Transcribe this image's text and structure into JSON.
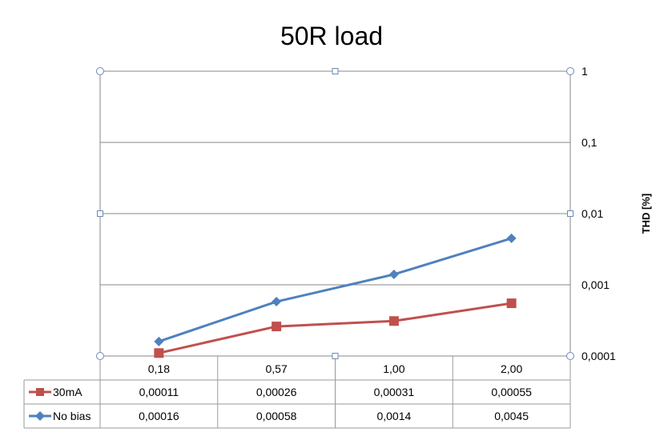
{
  "chart_data": {
    "type": "line",
    "title": "50R load",
    "ylabel": "THD [%]",
    "y_scale": "log",
    "ylim": [
      0.0001,
      1
    ],
    "y_ticks": [
      "1",
      "0,1",
      "0,01",
      "0,001",
      "0,0001"
    ],
    "y_tick_values": [
      1,
      0.1,
      0.01,
      0.001,
      0.0001
    ],
    "categories": [
      "0,18",
      "0,57",
      "1,00",
      "2,00"
    ],
    "grid": true,
    "legend": "data-table",
    "series": [
      {
        "name": "30mA",
        "color": "#c0504d",
        "marker": "square",
        "values": [
          0.00011,
          0.00026,
          0.00031,
          0.00055
        ],
        "labels": [
          "0,00011",
          "0,00026",
          "0,00031",
          "0,00055"
        ]
      },
      {
        "name": "No bias",
        "color": "#4f81bd",
        "marker": "diamond",
        "values": [
          0.00016,
          0.00058,
          0.0014,
          0.0045
        ],
        "labels": [
          "0,00016",
          "0,00058",
          "0,0014",
          "0,0045"
        ]
      }
    ]
  }
}
